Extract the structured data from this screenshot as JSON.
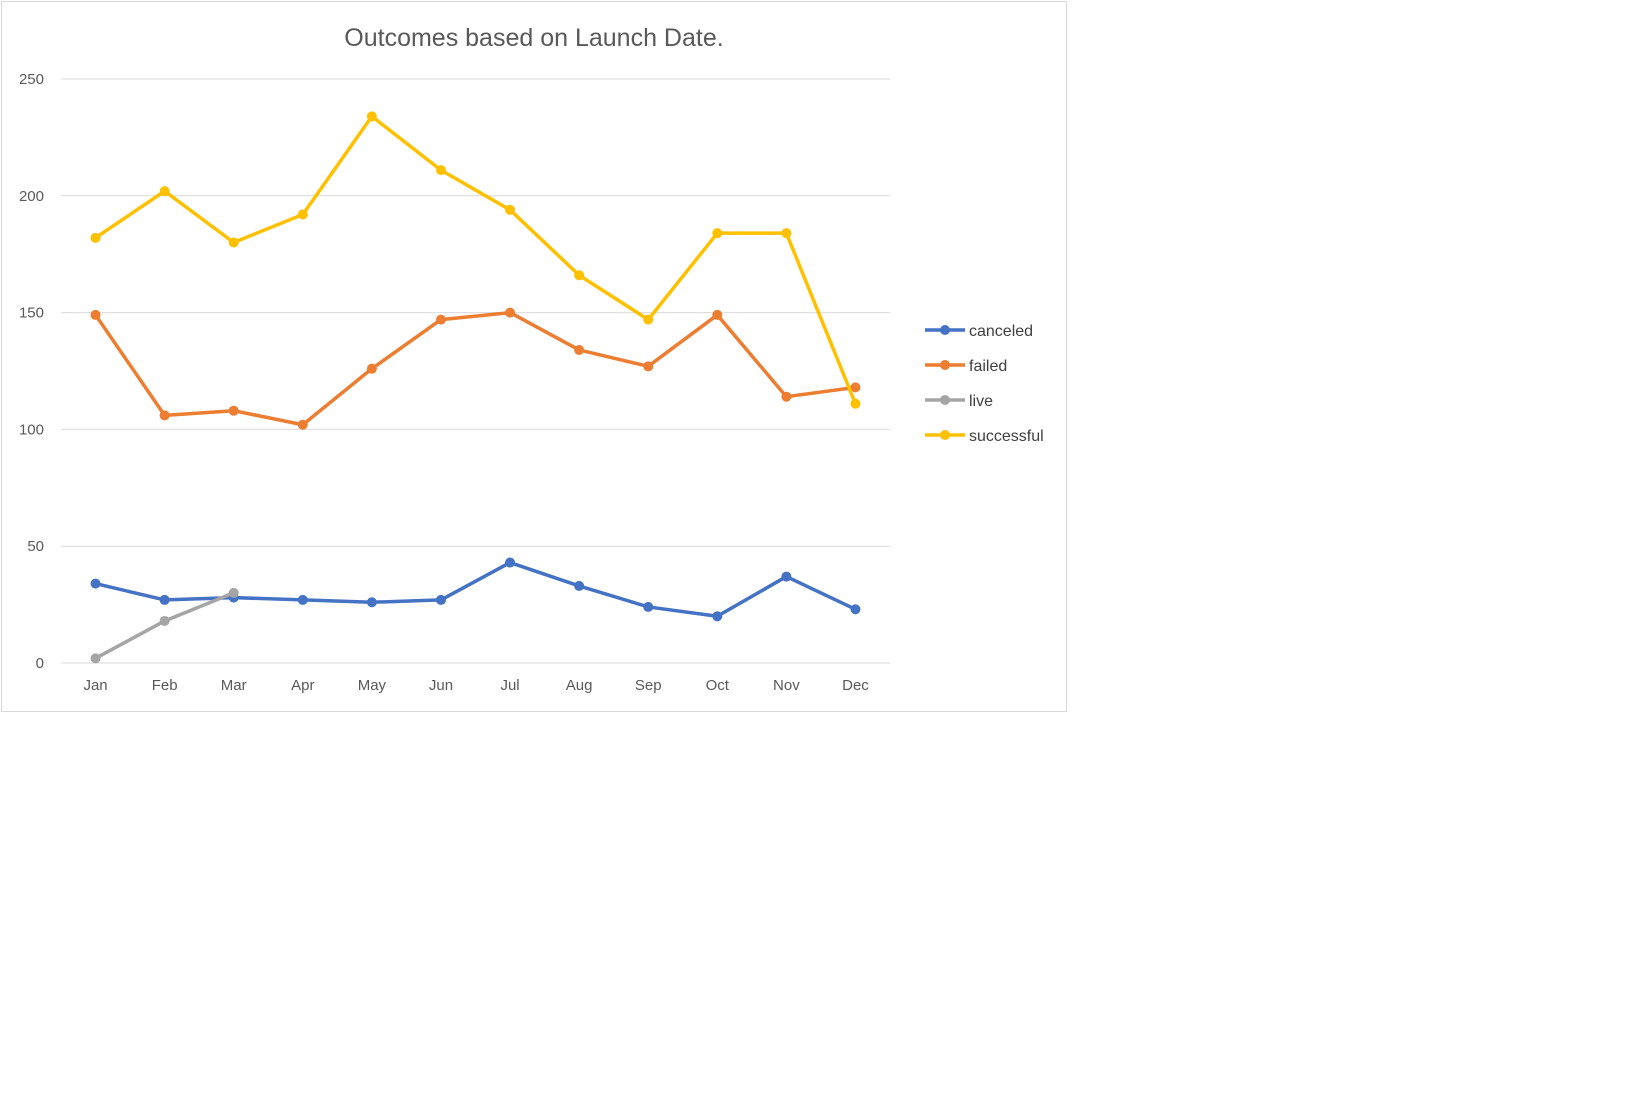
{
  "chart_data": {
    "type": "line",
    "title": "Outcomes based on Launch Date.",
    "xlabel": "",
    "ylabel": "",
    "categories": [
      "Jan",
      "Feb",
      "Mar",
      "Apr",
      "May",
      "Jun",
      "Jul",
      "Aug",
      "Sep",
      "Oct",
      "Nov",
      "Dec"
    ],
    "ylim": [
      0,
      250
    ],
    "yticks": [
      "0",
      "50",
      "100",
      "150",
      "200",
      "250"
    ],
    "grid": true,
    "legend_position": "right",
    "series": [
      {
        "name": "canceled",
        "color": "#4472C4",
        "values": [
          34,
          27,
          28,
          27,
          26,
          27,
          43,
          33,
          24,
          20,
          37,
          23
        ]
      },
      {
        "name": "failed",
        "color": "#ED7D31",
        "values": [
          149,
          106,
          108,
          102,
          126,
          147,
          150,
          134,
          127,
          149,
          114,
          118
        ]
      },
      {
        "name": "live",
        "color": "#A5A5A5",
        "values": [
          2,
          18,
          30,
          null,
          null,
          null,
          null,
          null,
          null,
          null,
          null,
          null
        ]
      },
      {
        "name": "successful",
        "color": "#FFC000",
        "values": [
          182,
          202,
          180,
          192,
          234,
          211,
          194,
          166,
          147,
          184,
          184,
          111
        ]
      }
    ]
  }
}
